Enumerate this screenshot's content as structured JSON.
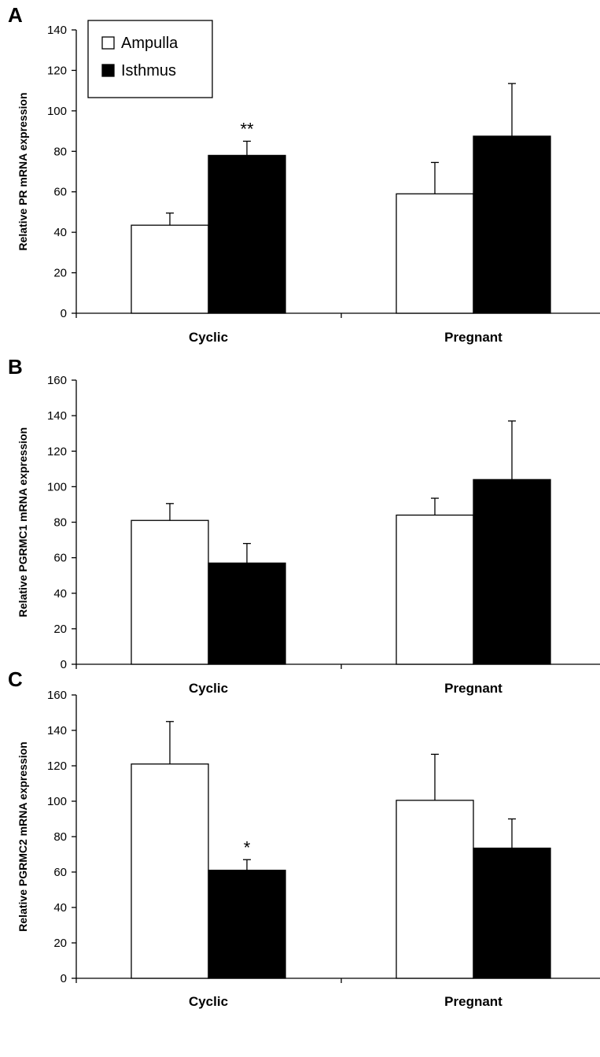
{
  "legend": {
    "placement": "top-left",
    "items": [
      {
        "label": "Ampulla",
        "color": "#ffffff"
      },
      {
        "label": "Isthmus",
        "color": "#000000"
      }
    ]
  },
  "chart_data": [
    {
      "type": "bar",
      "panel": "A",
      "ylabel": "Relative PR mRNA expression",
      "ylim": [
        0,
        140
      ],
      "yticks": [
        0,
        20,
        40,
        60,
        80,
        100,
        120,
        140
      ],
      "categories": [
        "Cyclic",
        "Pregnant"
      ],
      "series": [
        {
          "name": "Ampulla",
          "color": "#ffffff",
          "values": [
            43.5,
            59
          ],
          "errors": [
            6,
            15.5
          ]
        },
        {
          "name": "Isthmus",
          "color": "#000000",
          "values": [
            78,
            87.5
          ],
          "errors": [
            7,
            26
          ]
        }
      ],
      "annotations": [
        {
          "series": 1,
          "category": 0,
          "text": "**"
        }
      ]
    },
    {
      "type": "bar",
      "panel": "B",
      "ylabel": "Relative PGRMC1 mRNA expression",
      "ylim": [
        0,
        160
      ],
      "yticks": [
        0,
        20,
        40,
        60,
        80,
        100,
        120,
        140,
        160
      ],
      "categories": [
        "Cyclic",
        "Pregnant"
      ],
      "series": [
        {
          "name": "Ampulla",
          "color": "#ffffff",
          "values": [
            81,
            84
          ],
          "errors": [
            9.5,
            9.5
          ]
        },
        {
          "name": "Isthmus",
          "color": "#000000",
          "values": [
            57,
            104
          ],
          "errors": [
            11,
            33
          ]
        }
      ],
      "annotations": []
    },
    {
      "type": "bar",
      "panel": "C",
      "ylabel": "Relative PGRMC2 mRNA expression",
      "ylim": [
        0,
        160
      ],
      "yticks": [
        0,
        20,
        40,
        60,
        80,
        100,
        120,
        140,
        160
      ],
      "categories": [
        "Cyclic",
        "Pregnant"
      ],
      "series": [
        {
          "name": "Ampulla",
          "color": "#ffffff",
          "values": [
            121,
            100.5
          ],
          "errors": [
            24,
            26
          ]
        },
        {
          "name": "Isthmus",
          "color": "#000000",
          "values": [
            61,
            73.5
          ],
          "errors": [
            6,
            16.5
          ]
        }
      ],
      "annotations": [
        {
          "series": 1,
          "category": 0,
          "text": "*"
        }
      ]
    }
  ]
}
